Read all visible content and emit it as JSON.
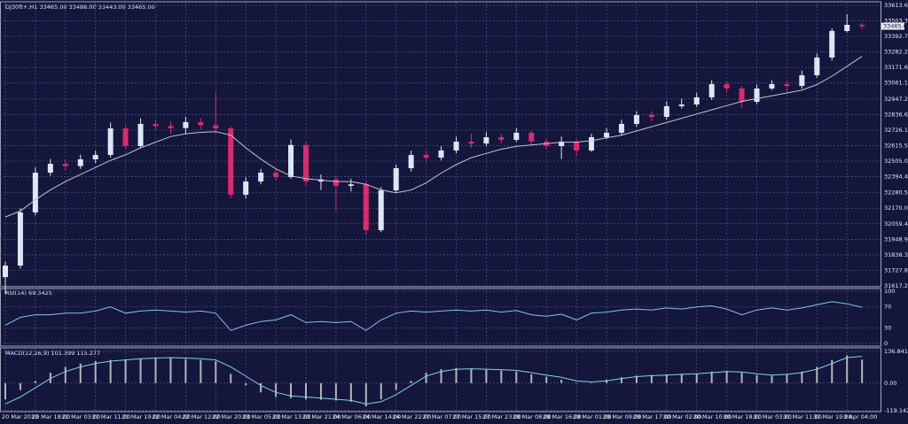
{
  "chart_data": [
    {
      "type": "candlestick",
      "title": "DJ30ft+,H1  33465.00 33488.00 33443.00 33465.00",
      "last_price_label": "33465.00",
      "last_price": 33465,
      "bull_color": "#dbe8f2",
      "bear_color": "#e0286e",
      "grid": true,
      "categories": [
        "20 Mar 2023",
        null,
        "20 Mar 18:00",
        null,
        "21 Mar 03:00",
        null,
        "21 Mar 11:00",
        null,
        "21 Mar 19:00",
        null,
        "22 Mar 04:00",
        null,
        "22 Mar 12:00",
        null,
        "22 Mar 20:00",
        null,
        "23 Mar 05:00",
        null,
        "23 Mar 13:00",
        null,
        "23 Mar 21:00",
        null,
        "24 Mar 06:00",
        null,
        "24 Mar 14:00",
        null,
        "24 Mar 22:00",
        null,
        "27 Mar 07:00",
        null,
        "27 Mar 15:00",
        null,
        "27 Mar 23:00",
        null,
        "28 Mar 08:00",
        null,
        "28 Mar 16:00",
        null,
        "29 Mar 01:00",
        null,
        "29 Mar 09:00",
        null,
        "29 Mar 17:00",
        null,
        "30 Mar 02:00",
        null,
        "30 Mar 10:00",
        null,
        "30 Mar 18:00",
        null,
        "31 Mar 03:00",
        null,
        "31 Mar 11:00",
        null,
        "31 Mar 19:00",
        null,
        "3 Apr 04:00",
        null
      ],
      "open": [
        31680,
        31762,
        32140,
        32423,
        32486,
        32470,
        32518,
        32549,
        32738,
        32612,
        32770,
        32755,
        32740,
        32783,
        32760,
        32738,
        32266,
        32360,
        32423,
        32392,
        32620,
        32360,
        32375,
        32329,
        32340,
        32014,
        32297,
        32455,
        32549,
        32530,
        32581,
        32644,
        32630,
        32675,
        32656,
        32707,
        32644,
        32612,
        32644,
        32581,
        32675,
        32707,
        32770,
        32833,
        32820,
        32896,
        32908,
        32959,
        33053,
        33022,
        32927,
        33022,
        33053,
        33040,
        33116,
        33242,
        33431,
        33475
      ],
      "high": [
        31790,
        32170,
        32460,
        32520,
        32520,
        32550,
        32580,
        32780,
        32760,
        32810,
        32800,
        32790,
        32820,
        32810,
        32990,
        32750,
        32390,
        32450,
        32450,
        32660,
        32640,
        32410,
        32400,
        32380,
        32360,
        32320,
        32480,
        32580,
        32580,
        32610,
        32680,
        32700,
        32710,
        32700,
        32740,
        32720,
        32660,
        32680,
        32660,
        32700,
        32740,
        32800,
        32860,
        32860,
        32930,
        32950,
        32990,
        33080,
        33070,
        33040,
        33050,
        33080,
        33080,
        33150,
        33270,
        33450,
        33550,
        33488
      ],
      "low": [
        31560,
        31740,
        32120,
        32400,
        32440,
        32450,
        32490,
        32530,
        32590,
        32600,
        32730,
        32700,
        32700,
        32730,
        32700,
        32240,
        32240,
        32340,
        32370,
        32380,
        32330,
        32300,
        32150,
        32290,
        31980,
        32000,
        32280,
        32430,
        32500,
        32510,
        32560,
        32600,
        32610,
        32630,
        32640,
        32620,
        32590,
        32520,
        32540,
        32570,
        32660,
        32690,
        32750,
        32790,
        32800,
        32880,
        32890,
        32940,
        32990,
        32880,
        32910,
        33010,
        33000,
        33020,
        33100,
        33220,
        33420,
        33443
      ],
      "close": [
        31762,
        32140,
        32423,
        32486,
        32470,
        32518,
        32549,
        32738,
        32612,
        32770,
        32755,
        32740,
        32783,
        32760,
        32738,
        32266,
        32360,
        32423,
        32392,
        32620,
        32360,
        32375,
        32329,
        32340,
        32014,
        32297,
        32455,
        32549,
        32530,
        32581,
        32644,
        32630,
        32675,
        32656,
        32707,
        32644,
        32612,
        32644,
        32581,
        32675,
        32707,
        32770,
        32833,
        32820,
        32896,
        32908,
        32959,
        33053,
        33022,
        32927,
        33022,
        33053,
        33040,
        33116,
        33242,
        33431,
        33475,
        33465
      ],
      "series": [
        {
          "name": "MA",
          "color": "#c4c4cc",
          "values": [
            32108,
            32150,
            32230,
            32300,
            32360,
            32410,
            32460,
            32510,
            32550,
            32600,
            32640,
            32680,
            32700,
            32710,
            32715,
            32690,
            32600,
            32520,
            32450,
            32400,
            32380,
            32370,
            32360,
            32360,
            32340,
            32300,
            32280,
            32300,
            32350,
            32420,
            32480,
            32530,
            32560,
            32590,
            32610,
            32620,
            32630,
            32640,
            32640,
            32650,
            32670,
            32690,
            32720,
            32750,
            32780,
            32810,
            32840,
            32870,
            32900,
            32930,
            32950,
            32970,
            32990,
            33010,
            33050,
            33110,
            33180,
            33250
          ]
        }
      ],
      "ylim": [
        31617.25,
        33613.65
      ],
      "yticks": [
        33613.65,
        {
          "value": 33503.3,
          "label": "33503.30"
        },
        33392.75,
        {
          "value": 33282.2,
          "label": "33282.20"
        },
        33171.65,
        {
          "value": 33061.1,
          "label": "33061.10"
        },
        {
          "value": 32947.2,
          "label": "32947.20"
        },
        32836.65,
        {
          "value": 32726.1,
          "label": "32726.10"
        },
        32615.55,
        {
          "value": 32505,
          "label": "32505.00"
        },
        32394.45,
        32280.55,
        {
          "value": 32170,
          "label": "32170.00"
        },
        32059.45,
        {
          "value": 31948.9,
          "label": "31948.90"
        },
        31838.35,
        {
          "value": 31727.8,
          "label": "31727.80"
        },
        31617.25
      ]
    },
    {
      "type": "line",
      "title": "RSI(14) 69.3425",
      "grid": true,
      "series": [
        {
          "name": "RSI(14)",
          "color": "#7fc7e0",
          "values": [
            35,
            50,
            55,
            55,
            58,
            58,
            62,
            70,
            58,
            62,
            64,
            62,
            60,
            62,
            58,
            25,
            35,
            42,
            45,
            55,
            40,
            42,
            40,
            42,
            25,
            45,
            58,
            62,
            60,
            62,
            64,
            62,
            64,
            60,
            63,
            55,
            52,
            56,
            45,
            58,
            60,
            64,
            66,
            64,
            68,
            66,
            70,
            72,
            66,
            55,
            64,
            68,
            64,
            68,
            74,
            80,
            76,
            69.3425
          ]
        }
      ],
      "ylim": [
        0,
        100
      ],
      "yticks": [
        0,
        30,
        70,
        100
      ]
    },
    {
      "type": "macd",
      "title": "MACD(12,26,9) 101.399 115.277",
      "grid": true,
      "histogram_color": "#b4b4bc",
      "histogram": [
        -70,
        -30,
        10,
        45,
        70,
        85,
        95,
        100,
        103,
        106,
        108,
        108,
        104,
        100,
        95,
        40,
        -10,
        -40,
        -60,
        -65,
        -70,
        -72,
        -75,
        -80,
        -100,
        -70,
        -30,
        10,
        45,
        60,
        65,
        62,
        58,
        55,
        50,
        38,
        28,
        15,
        0,
        0,
        15,
        25,
        32,
        35,
        38,
        40,
        42,
        50,
        52,
        45,
        35,
        32,
        40,
        50,
        70,
        100,
        120,
        101.399
      ],
      "series": [
        {
          "name": "Signal",
          "color": "#7fd3ea",
          "values": [
            -90,
            -60,
            -20,
            20,
            50,
            70,
            85,
            95,
            100,
            105,
            108,
            110,
            108,
            105,
            100,
            70,
            30,
            -10,
            -40,
            -55,
            -60,
            -65,
            -70,
            -75,
            -90,
            -80,
            -50,
            -10,
            30,
            50,
            60,
            62,
            60,
            58,
            55,
            45,
            35,
            25,
            10,
            5,
            10,
            20,
            28,
            32,
            35,
            38,
            40,
            45,
            50,
            48,
            40,
            35,
            38,
            45,
            60,
            85,
            110,
            115.277
          ]
        }
      ],
      "ylim": [
        -119.142,
        136.841
      ],
      "yticks": [
        -119.142,
        {
          "value": 0,
          "label": "0.00"
        },
        136.841
      ]
    }
  ]
}
